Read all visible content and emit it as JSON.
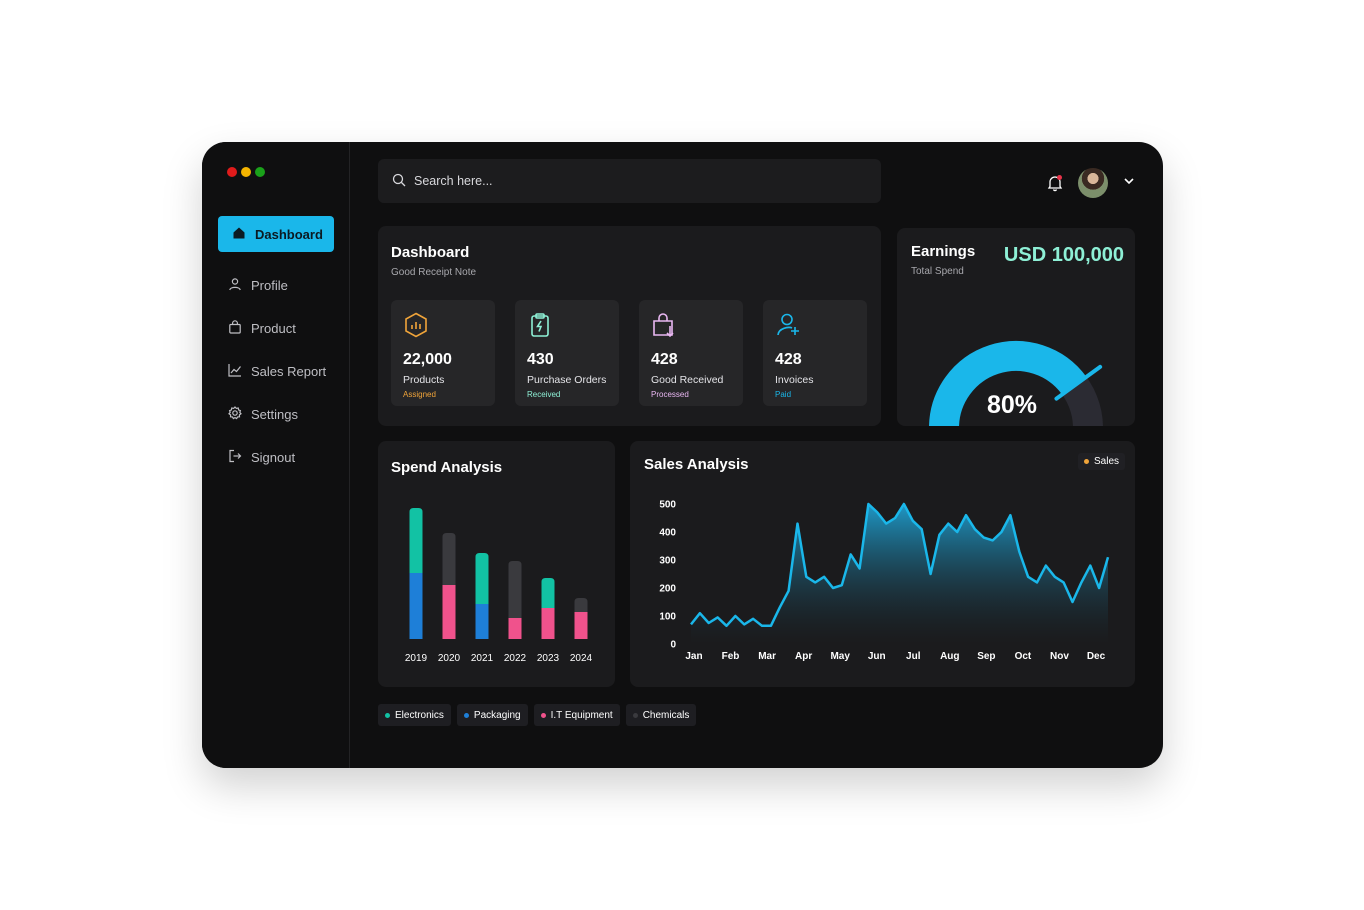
{
  "window": {
    "traffic_lights": [
      "#e01b1b",
      "#f4b400",
      "#1aa11a"
    ]
  },
  "sidebar": {
    "items": [
      {
        "label": "Dashboard",
        "icon": "home-icon",
        "active": true
      },
      {
        "label": "Profile",
        "icon": "user-icon"
      },
      {
        "label": "Product",
        "icon": "bag-icon"
      },
      {
        "label": "Sales Report",
        "icon": "chart-icon"
      },
      {
        "label": "Settings",
        "icon": "gear-icon"
      },
      {
        "label": "Signout",
        "icon": "signout-icon"
      }
    ]
  },
  "search": {
    "placeholder": "Search here..."
  },
  "dashboard": {
    "title": "Dashboard",
    "subtitle": "Good Receipt Note",
    "stats": [
      {
        "value": "22,000",
        "label": "Products",
        "tag": "Assigned",
        "tag_color": "#f0a43a",
        "icon": "hexagon-chart-icon",
        "icon_color": "#f0a43a"
      },
      {
        "value": "430",
        "label": "Purchase Orders",
        "tag": "Received",
        "tag_color": "#8ef0d6",
        "icon": "clipboard-bolt-icon",
        "icon_color": "#8ef0d6"
      },
      {
        "value": "428",
        "label": "Good Received",
        "tag": "Processed",
        "tag_color": "#e9b7f2",
        "icon": "bag-download-icon",
        "icon_color": "#e9b7f2"
      },
      {
        "value": "428",
        "label": "Invoices",
        "tag": "Paid",
        "tag_color": "#1ab7ea",
        "icon": "user-add-icon",
        "icon_color": "#1ab7ea"
      }
    ]
  },
  "earnings": {
    "title": "Earnings",
    "subtitle": "Total Spend",
    "amount": "USD 100,000",
    "percent_label": "80%",
    "percent": 0.8,
    "gauge_color": "#1ab7ea",
    "gauge_track": "#2b2b33"
  },
  "spend": {
    "title": "Spend Analysis",
    "legend": [
      {
        "label": "Electronics",
        "color": "#12c2a4"
      },
      {
        "label": "Packaging",
        "color": "#1e7fd8"
      },
      {
        "label": "I.T Equipment",
        "color": "#f0528c"
      },
      {
        "label": "Chemicals",
        "color": "#3a3a3e"
      }
    ]
  },
  "sales": {
    "title": "Sales Analysis",
    "legend_label": "Sales",
    "legend_color": "#f0a43a"
  },
  "chart_data": [
    {
      "type": "bar",
      "title": "Spend Analysis",
      "categories": [
        "2019",
        "2020",
        "2021",
        "2022",
        "2023",
        "2024"
      ],
      "stacks": [
        [
          {
            "series": "Packaging",
            "value": 66
          },
          {
            "series": "Electronics",
            "value": 65
          }
        ],
        [
          {
            "series": "I.T Equipment",
            "value": 54
          },
          {
            "series": "Chemicals",
            "value": 52
          }
        ],
        [
          {
            "series": "Packaging",
            "value": 35
          },
          {
            "series": "Electronics",
            "value": 51
          }
        ],
        [
          {
            "series": "I.T Equipment",
            "value": 21
          },
          {
            "series": "Chemicals",
            "value": 57
          }
        ],
        [
          {
            "series": "I.T Equipment",
            "value": 31
          },
          {
            "series": "Electronics",
            "value": 30
          }
        ],
        [
          {
            "series": "I.T Equipment",
            "value": 27
          },
          {
            "series": "Chemicals",
            "value": 14
          }
        ]
      ],
      "ylim": [
        0,
        140
      ]
    },
    {
      "type": "area",
      "title": "Sales Analysis",
      "x_labels": [
        "Jan",
        "Feb",
        "Mar",
        "Apr",
        "May",
        "Jun",
        "Jul",
        "Aug",
        "Sep",
        "Oct",
        "Nov",
        "Dec"
      ],
      "y_ticks": [
        0,
        100,
        200,
        300,
        400,
        500
      ],
      "ylim": [
        0,
        500
      ],
      "series": [
        {
          "name": "Sales",
          "values": [
            70,
            110,
            75,
            95,
            65,
            100,
            70,
            90,
            65,
            65,
            130,
            190,
            430,
            240,
            220,
            240,
            200,
            210,
            320,
            270,
            500,
            470,
            430,
            450,
            500,
            440,
            410,
            250,
            390,
            430,
            400,
            460,
            410,
            380,
            370,
            400,
            460,
            330,
            240,
            220,
            280,
            240,
            220,
            150,
            220,
            280,
            200,
            310
          ]
        }
      ]
    }
  ]
}
